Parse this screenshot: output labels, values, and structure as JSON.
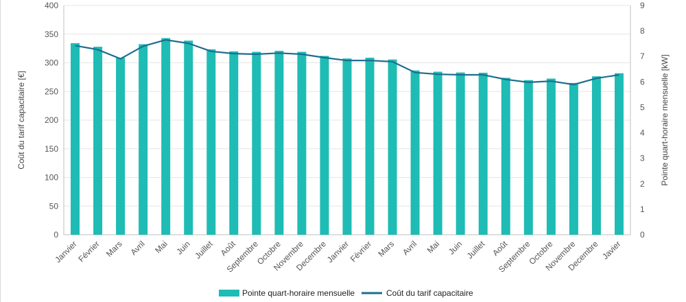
{
  "chart_data": {
    "type": "bar",
    "categories": [
      "Janvier",
      "Février",
      "Mars",
      "Avril",
      "Mai",
      "Juin",
      "Juillet",
      "Août",
      "Septembre",
      "Octobre",
      "Novembre",
      "Decembre",
      "Janvier",
      "Février",
      "Mars",
      "Avril",
      "Mai",
      "Juin",
      "Juillet",
      "Août",
      "Septembre",
      "Octobre",
      "Novembre",
      "Decembre",
      "Javier"
    ],
    "series": [
      {
        "name": "Pointe quart-horaire mensuelle",
        "type": "bar",
        "axis": "right",
        "unit": "kW",
        "color": "#1ebcb4",
        "values": [
          7.52,
          7.38,
          6.95,
          7.48,
          7.72,
          7.62,
          7.28,
          7.2,
          7.18,
          7.22,
          7.18,
          7.02,
          6.92,
          6.95,
          6.88,
          6.45,
          6.4,
          6.37,
          6.36,
          6.16,
          6.07,
          6.13,
          5.96,
          6.22,
          6.34
        ]
      },
      {
        "name": "Coût du tarif capacitaire",
        "type": "line",
        "axis": "left",
        "unit": "€",
        "color": "#1c6d8f",
        "values": [
          330,
          323,
          307,
          329,
          340,
          334,
          320,
          316,
          315,
          317,
          315,
          309,
          304,
          304,
          302,
          283,
          280,
          279,
          279,
          271,
          266,
          268,
          262,
          273,
          279
        ]
      }
    ],
    "title": "",
    "xlabel": "",
    "ylabel": "Coût du tarif capacitaire [€]",
    "y2label": "Pointe quart-horaire mensuelle [kW]",
    "ylim": [
      0,
      400
    ],
    "y2lim": [
      0,
      9
    ],
    "yticks": [
      "0",
      "50",
      "100",
      "150",
      "200",
      "250",
      "300",
      "350",
      "400"
    ],
    "y2ticks": [
      "0",
      "1",
      "2",
      "3",
      "4",
      "5",
      "6",
      "7",
      "8",
      "9"
    ],
    "grid": true,
    "legend_position": "bottom-center",
    "gridColor": "#e6e6e6",
    "axisColor": "#bfbfbf"
  }
}
